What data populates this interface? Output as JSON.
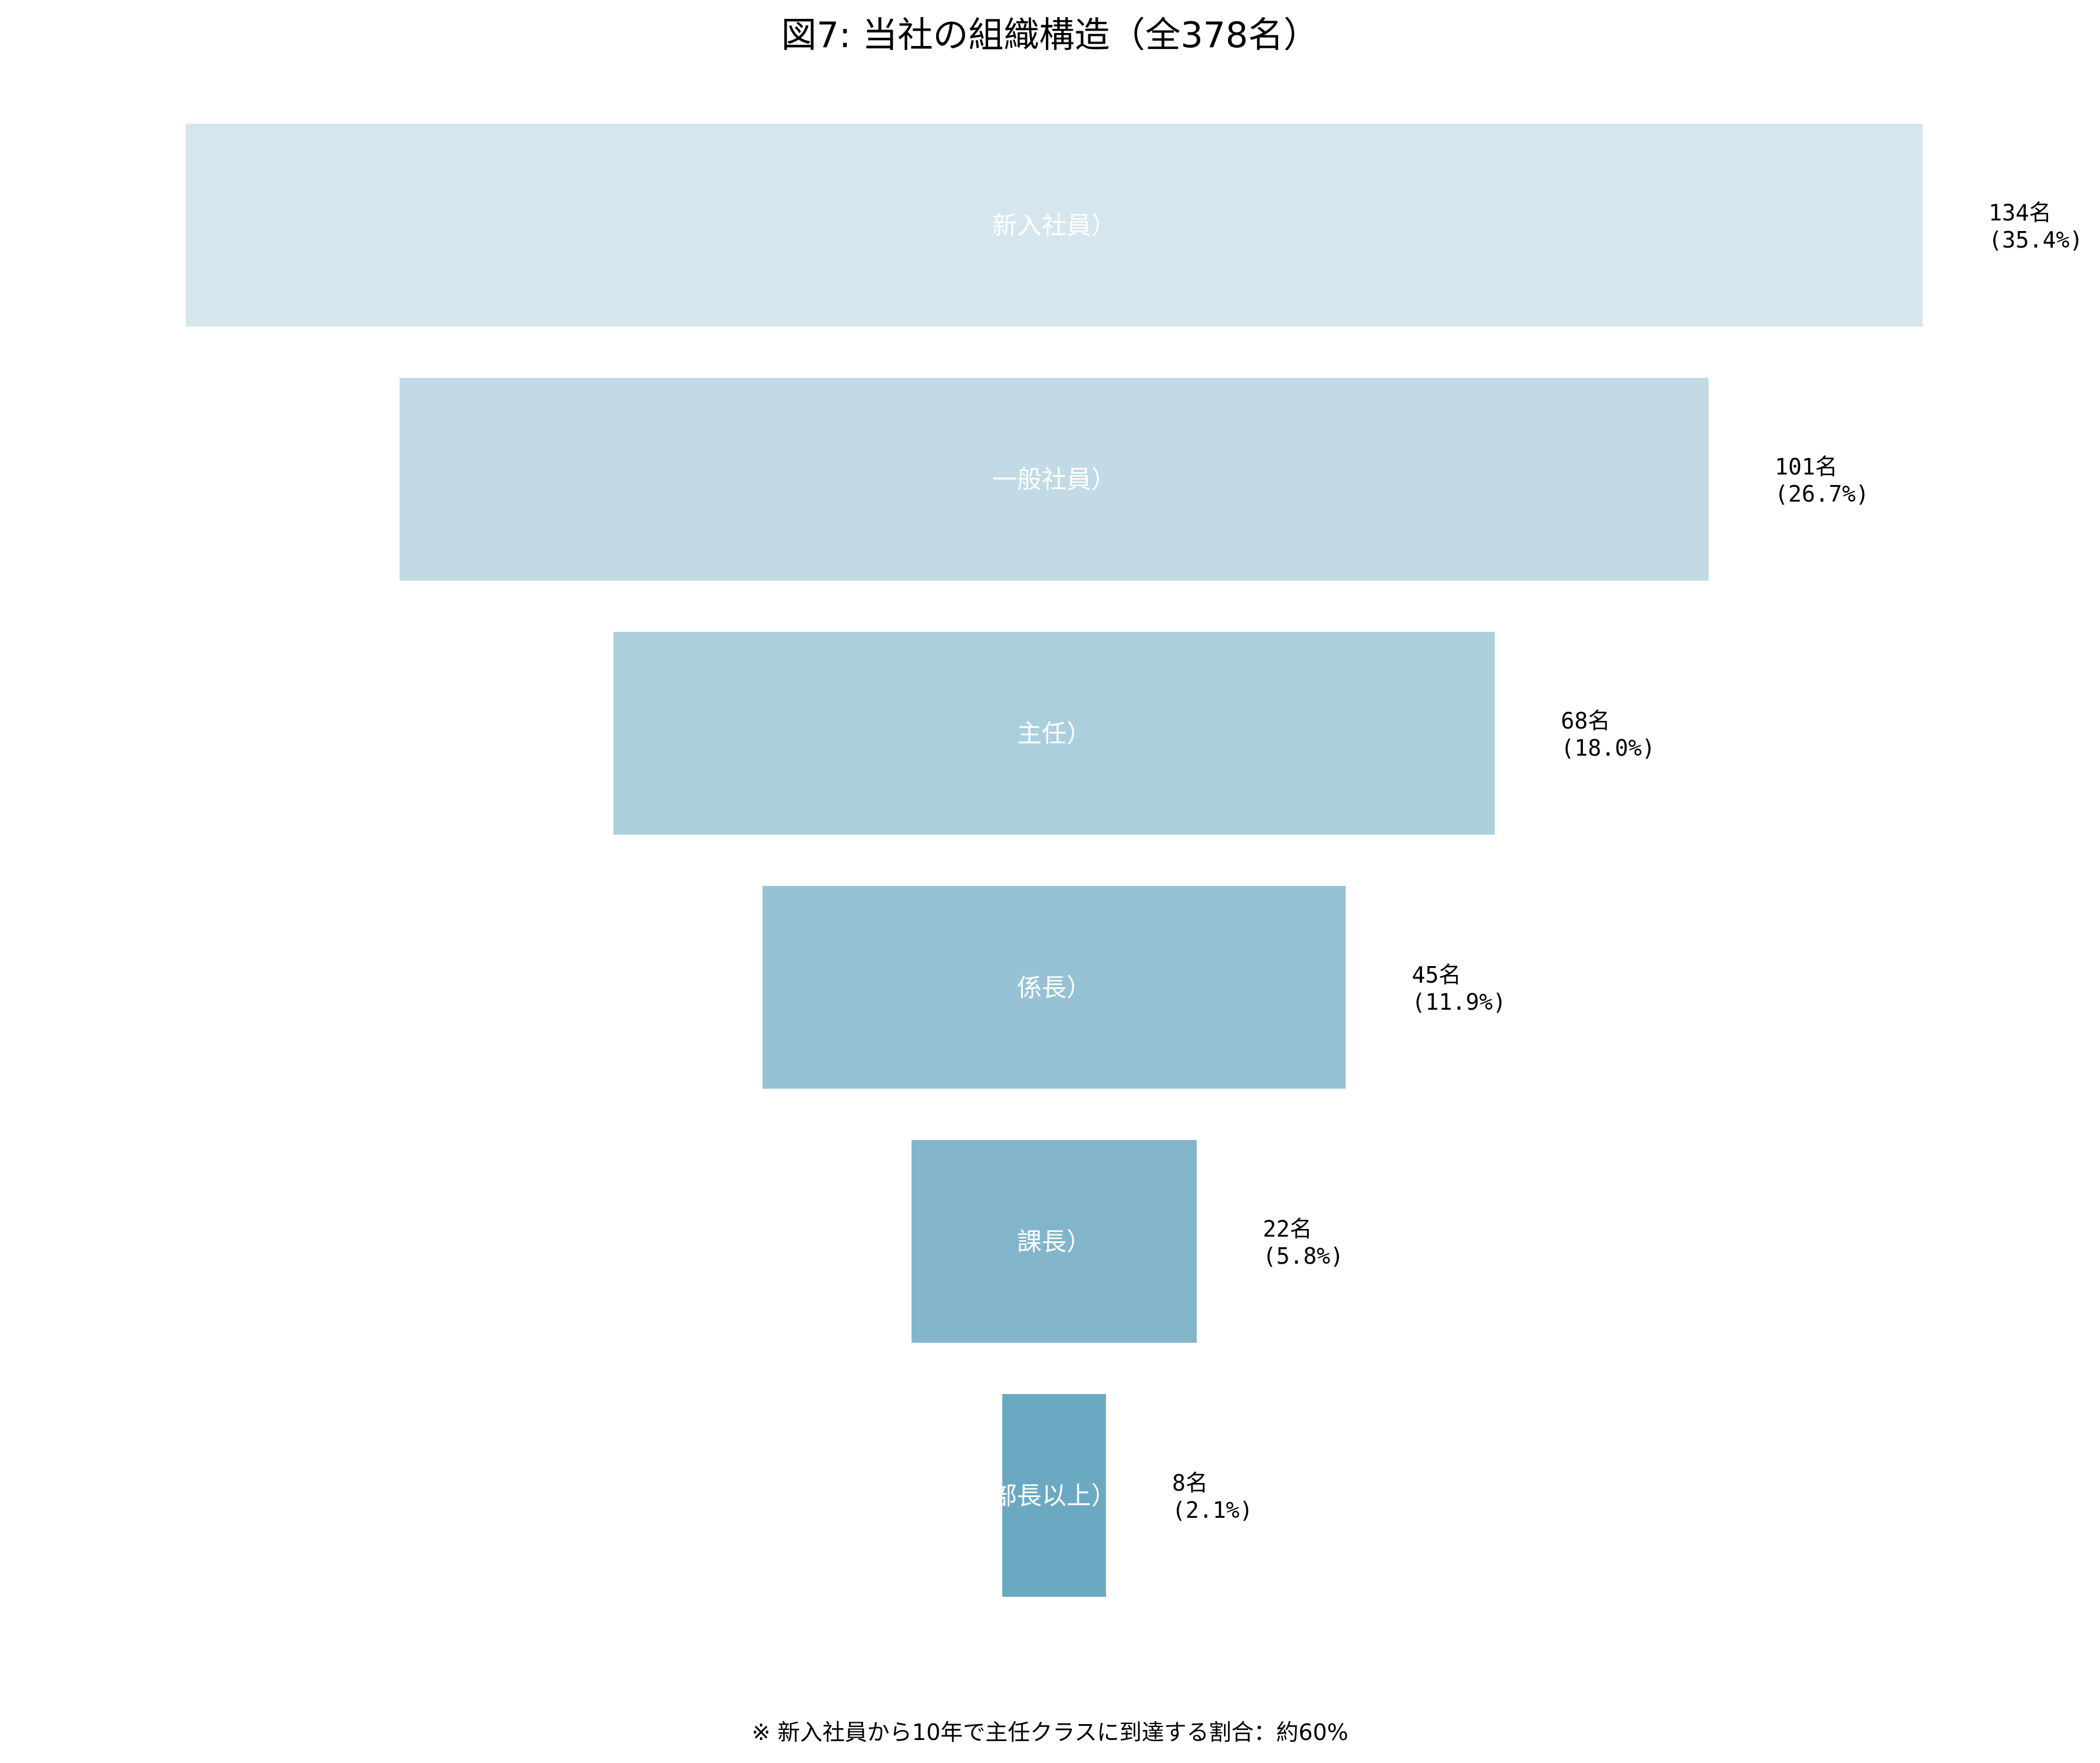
{
  "chart_data": {
    "type": "bar",
    "subtype": "funnel",
    "title": "図7: 当社の組織構造（全378名）",
    "footnote": "※ 新入社員から10年で主任クラスに到達する割合：約60%",
    "categories": [
      "新入社員）",
      "一般社員）",
      "主任）",
      "係長）",
      "課長）",
      "部長以上）"
    ],
    "values": [
      134,
      101,
      68,
      45,
      22,
      8
    ],
    "count_labels": [
      "134名",
      "101名",
      "68名",
      "45名",
      "22名",
      "8名"
    ],
    "percent_labels": [
      "(35.4%)",
      "(26.7%)",
      "(18.0%)",
      "(11.9%)",
      "(5.8%)",
      "(2.1%)"
    ],
    "colors": [
      "#d6e6ee",
      "#c1dae5",
      "#abcfdd",
      "#97c1d4",
      "#82b5ca",
      "#6ba9c3"
    ],
    "grid": false,
    "legend": "none"
  }
}
